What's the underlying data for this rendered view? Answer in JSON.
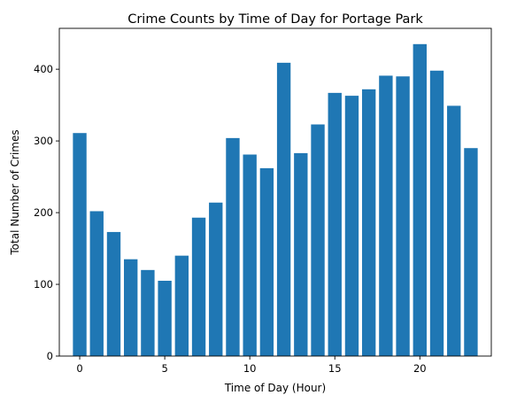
{
  "chart_data": {
    "type": "bar",
    "title": "Crime Counts by Time of Day for Portage Park",
    "xlabel": "Time of Day (Hour)",
    "ylabel": "Total Number of Crimes",
    "x": [
      0,
      1,
      2,
      3,
      4,
      5,
      6,
      7,
      8,
      9,
      10,
      11,
      12,
      13,
      14,
      15,
      16,
      17,
      18,
      19,
      20,
      21,
      22,
      23
    ],
    "values": [
      311,
      202,
      173,
      135,
      120,
      105,
      140,
      193,
      214,
      304,
      281,
      262,
      409,
      283,
      323,
      367,
      363,
      372,
      391,
      390,
      435,
      398,
      349,
      290
    ],
    "xticks": [
      0,
      5,
      10,
      15,
      20
    ],
    "yticks": [
      0,
      100,
      200,
      300,
      400
    ],
    "xlim": [
      -1.2,
      24.2
    ],
    "ylim": [
      0,
      457
    ],
    "bar_color": "#1f77b4",
    "grid": false,
    "legend": "none"
  }
}
